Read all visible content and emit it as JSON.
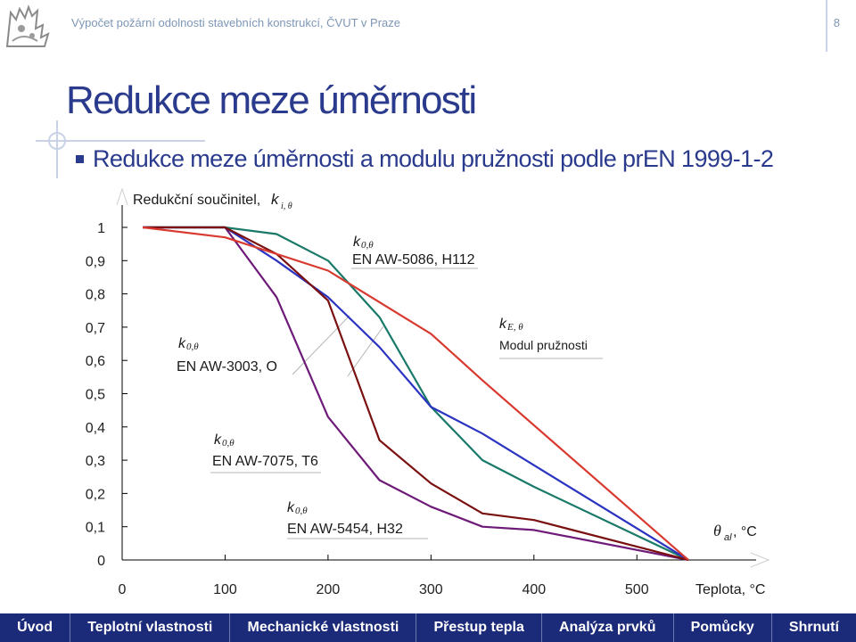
{
  "header": {
    "title": "Výpočet požární odolnosti stavebních konstrukcí, ČVUT v Praze",
    "slide_number": "8"
  },
  "slide": {
    "title": "Redukce meze úměrnosti",
    "bullet": "Redukce meze úměrnosti a modulu pružnosti podle prEN 1999-1-2"
  },
  "chart_data": {
    "type": "line",
    "ylabel": "Redukční součinitel,",
    "ylabel_symbol": "k",
    "ylabel_subscript": "i, θ",
    "xlabel": "Teplota, °C",
    "xlabel_inner": "θ",
    "xlabel_inner_sub": "al",
    "xlabel_inner_unit": ", °C",
    "xlim": [
      0,
      550
    ],
    "ylim": [
      0,
      1
    ],
    "x_ticks": [
      "0",
      "100",
      "200",
      "300",
      "400",
      "500"
    ],
    "y_ticks": [
      "0",
      "0,1",
      "0,2",
      "0,3",
      "0,4",
      "0,5",
      "0,6",
      "0,7",
      "0,8",
      "0,9",
      "1"
    ],
    "grid": "none",
    "series": [
      {
        "symbol": "k",
        "sub": "0,θ",
        "label": "EN AW-5086, H112",
        "color": "#1a7a6a",
        "x": [
          20,
          100,
          150,
          200,
          250,
          300,
          350,
          400,
          550
        ],
        "y": [
          1.0,
          1.0,
          0.98,
          0.9,
          0.73,
          0.46,
          0.3,
          0.22,
          0.0
        ]
      },
      {
        "symbol": "k",
        "sub": "0,θ",
        "label": "EN AW-3003, O",
        "color": "#2a34c0",
        "x": [
          20,
          100,
          150,
          200,
          250,
          300,
          350,
          550
        ],
        "y": [
          1.0,
          1.0,
          0.9,
          0.79,
          0.64,
          0.46,
          0.38,
          0.0
        ]
      },
      {
        "symbol": "k",
        "sub": "0,θ",
        "label": "EN AW-7075, T6",
        "color": "#6e1a78",
        "x": [
          20,
          100,
          150,
          200,
          250,
          300,
          350,
          400,
          550
        ],
        "y": [
          1.0,
          1.0,
          0.79,
          0.43,
          0.24,
          0.16,
          0.1,
          0.09,
          0.0
        ]
      },
      {
        "symbol": "k",
        "sub": "0,θ",
        "label": "EN AW-5454, H32",
        "color": "#7a1010",
        "x": [
          20,
          100,
          150,
          200,
          250,
          300,
          350,
          400,
          550
        ],
        "y": [
          1.0,
          1.0,
          0.92,
          0.78,
          0.36,
          0.23,
          0.14,
          0.12,
          0.0
        ]
      },
      {
        "symbol": "k",
        "sub": "E, θ",
        "label": "Modul pružnosti",
        "color": "#d83a30",
        "x": [
          20,
          100,
          200,
          300,
          350,
          550
        ],
        "y": [
          1.0,
          0.97,
          0.87,
          0.68,
          0.54,
          0.0
        ]
      }
    ]
  },
  "nav": {
    "items": [
      "Úvod",
      "Teplotní vlastnosti",
      "Mechanické vlastnosti",
      "Přestup tepla",
      "Analýza prvků",
      "Pomůcky",
      "Shrnutí"
    ]
  }
}
